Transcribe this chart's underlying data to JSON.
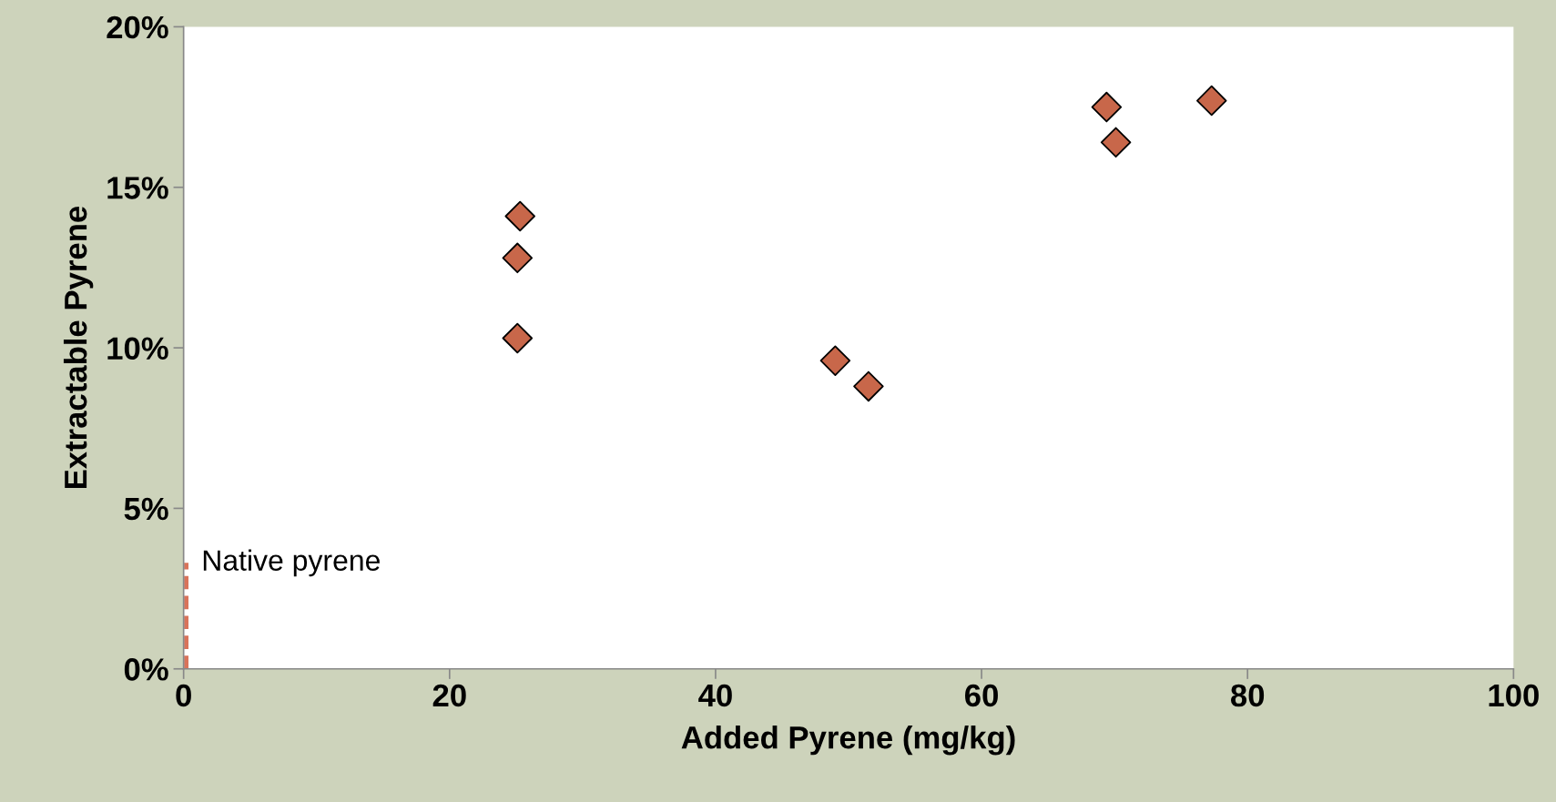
{
  "chart_data": {
    "type": "scatter",
    "xlabel": "Added Pyrene (mg/kg)",
    "ylabel": "Extractable Pyrene",
    "xlim": [
      0,
      100
    ],
    "xticks": [
      0,
      20,
      40,
      60,
      80,
      100
    ],
    "ylim": [
      0,
      20
    ],
    "yticks": [
      {
        "value": 0,
        "label": "0%"
      },
      {
        "value": 5,
        "label": "5%"
      },
      {
        "value": 10,
        "label": "10%"
      },
      {
        "value": 15,
        "label": "15%"
      },
      {
        "value": 20,
        "label": "20%"
      }
    ],
    "grid": false,
    "legend": false,
    "marker": "diamond",
    "series": [
      {
        "color": "#c8674a",
        "x": [
          25.3,
          25.1,
          25.1,
          49.0,
          51.5,
          69.4,
          70.1,
          77.3
        ],
        "values": [
          14.1,
          12.8,
          10.3,
          9.6,
          8.8,
          17.5,
          16.4,
          17.7
        ]
      },
      {
        "type": "line",
        "color": "#d9735a",
        "line_style": "dashed",
        "marker": "none",
        "x": [
          0.2,
          0.2
        ],
        "values": [
          0,
          3.3
        ]
      }
    ],
    "annotations": [
      {
        "text": "Native pyrene",
        "x": 0.2,
        "y": 3.3
      }
    ]
  }
}
